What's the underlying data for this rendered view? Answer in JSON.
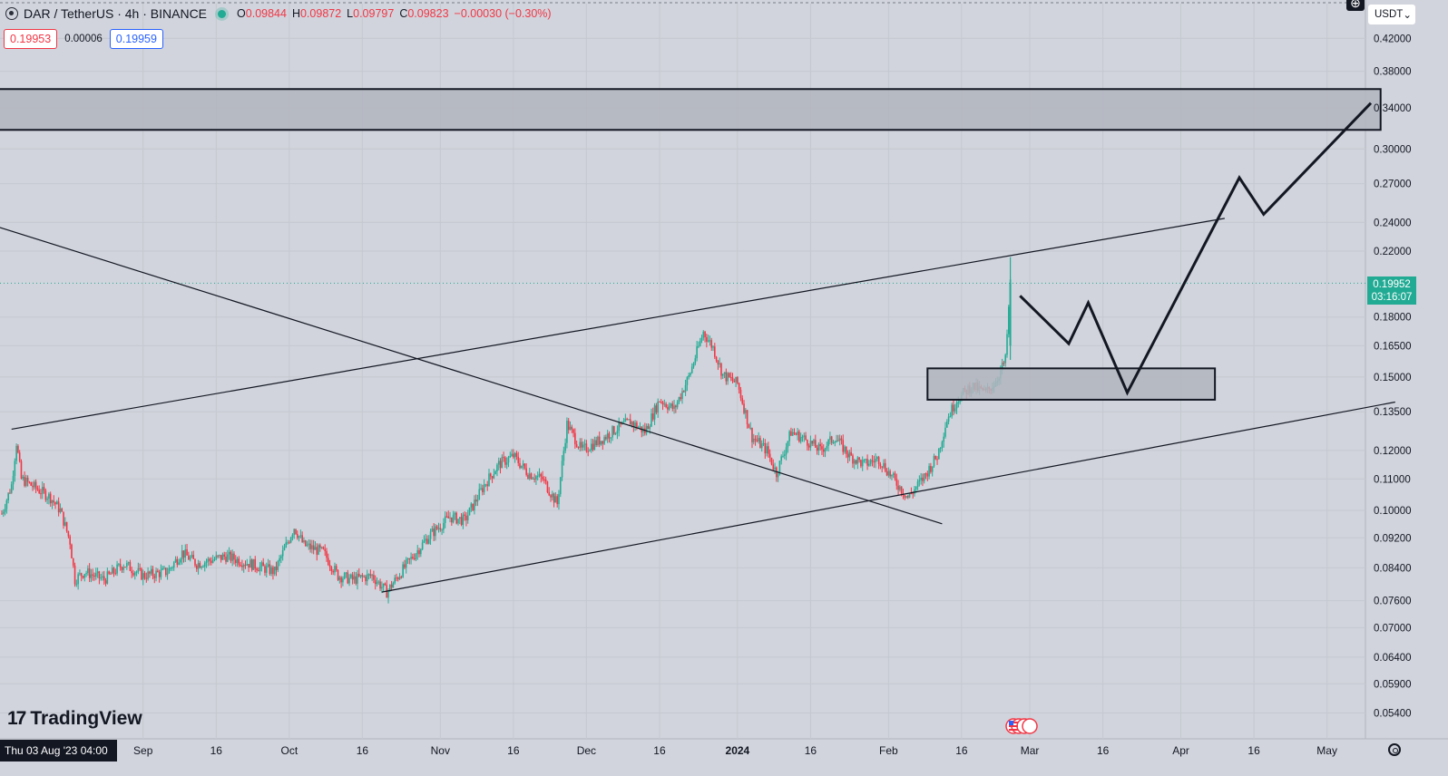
{
  "header": {
    "symbol": "DAR / TetherUS · 4h · BINANCE",
    "open_label": "O",
    "open": "0.09844",
    "high_label": "H",
    "high": "0.09872",
    "low_label": "L",
    "low": "0.09797",
    "close_label": "C",
    "close": "0.09823",
    "change": "−0.00030 (−0.30%)"
  },
  "trade": {
    "sell_price": "0.19953",
    "spread": "0.00006",
    "buy_price": "0.19959"
  },
  "currency": {
    "label": "USDT",
    "caret": "⌄"
  },
  "plus_icon": "⊕",
  "last_price": {
    "price": "0.19952",
    "countdown": "03:16:07"
  },
  "logo": {
    "mark": "17",
    "text": "TradingView"
  },
  "crosshair_date": "Thu 03 Aug '23   04:00",
  "colors": {
    "up": "#22ab94",
    "down": "#f23645",
    "background": "#d1d4dc",
    "lines": "#131722",
    "zone_fill": "#b2b5be"
  },
  "chart_data": {
    "type": "candlestick",
    "symbol": "DAR/USDT",
    "timeframe": "4h",
    "y_scale": "log",
    "ylim": [
      0.05,
      0.43
    ],
    "price_ticks": [
      "0.42000",
      "0.38000",
      "0.34000",
      "0.30000",
      "0.27000",
      "0.24000",
      "0.22000",
      "0.18000",
      "0.16500",
      "0.15000",
      "0.13500",
      "0.12000",
      "0.11000",
      "0.10000",
      "0.09200",
      "0.08400",
      "0.07600",
      "0.07000",
      "0.06400",
      "0.05900",
      "0.05400"
    ],
    "time_ticks": [
      "Sep",
      "16",
      "Oct",
      "16",
      "Nov",
      "16",
      "Dec",
      "16",
      "2024",
      "16",
      "Feb",
      "16",
      "Mar",
      "16",
      "Apr",
      "16",
      "May"
    ],
    "last_price": 0.19952,
    "price_path": [
      [
        "2023-08-03",
        0.099
      ],
      [
        "2023-08-05",
        0.108
      ],
      [
        "2023-08-06",
        0.123
      ],
      [
        "2023-08-07",
        0.11
      ],
      [
        "2023-08-10",
        0.107
      ],
      [
        "2023-08-13",
        0.104
      ],
      [
        "2023-08-15",
        0.1
      ],
      [
        "2023-08-17",
        0.091
      ],
      [
        "2023-08-18",
        0.081
      ],
      [
        "2023-08-20",
        0.083
      ],
      [
        "2023-08-24",
        0.081
      ],
      [
        "2023-08-28",
        0.085
      ],
      [
        "2023-09-01",
        0.082
      ],
      [
        "2023-09-06",
        0.083
      ],
      [
        "2023-09-09",
        0.088
      ],
      [
        "2023-09-12",
        0.085
      ],
      [
        "2023-09-15",
        0.086
      ],
      [
        "2023-09-18",
        0.087
      ],
      [
        "2023-09-23",
        0.085
      ],
      [
        "2023-09-28",
        0.083
      ],
      [
        "2023-10-02",
        0.095
      ],
      [
        "2023-10-04",
        0.09
      ],
      [
        "2023-10-08",
        0.088
      ],
      [
        "2023-10-11",
        0.082
      ],
      [
        "2023-10-14",
        0.081
      ],
      [
        "2023-10-18",
        0.082
      ],
      [
        "2023-10-21",
        0.078
      ],
      [
        "2023-10-24",
        0.083
      ],
      [
        "2023-10-27",
        0.088
      ],
      [
        "2023-10-30",
        0.093
      ],
      [
        "2023-11-03",
        0.098
      ],
      [
        "2023-11-06",
        0.097
      ],
      [
        "2023-11-10",
        0.108
      ],
      [
        "2023-11-13",
        0.115
      ],
      [
        "2023-11-16",
        0.118
      ],
      [
        "2023-11-19",
        0.112
      ],
      [
        "2023-11-22",
        0.11
      ],
      [
        "2023-11-25",
        0.102
      ],
      [
        "2023-11-27",
        0.13
      ],
      [
        "2023-11-30",
        0.12
      ],
      [
        "2023-12-04",
        0.124
      ],
      [
        "2023-12-07",
        0.128
      ],
      [
        "2023-12-10",
        0.131
      ],
      [
        "2023-12-13",
        0.127
      ],
      [
        "2023-12-16",
        0.14
      ],
      [
        "2023-12-19",
        0.136
      ],
      [
        "2023-12-22",
        0.15
      ],
      [
        "2023-12-25",
        0.172
      ],
      [
        "2023-12-27",
        0.164
      ],
      [
        "2023-12-29",
        0.151
      ],
      [
        "2024-01-01",
        0.147
      ],
      [
        "2024-01-04",
        0.125
      ],
      [
        "2024-01-07",
        0.12
      ],
      [
        "2024-01-09",
        0.112
      ],
      [
        "2024-01-12",
        0.127
      ],
      [
        "2024-01-15",
        0.124
      ],
      [
        "2024-01-18",
        0.12
      ],
      [
        "2024-01-21",
        0.125
      ],
      [
        "2024-01-24",
        0.118
      ],
      [
        "2024-01-27",
        0.115
      ],
      [
        "2024-01-30",
        0.117
      ],
      [
        "2024-02-02",
        0.11
      ],
      [
        "2024-02-05",
        0.104
      ],
      [
        "2024-02-08",
        0.11
      ],
      [
        "2024-02-11",
        0.118
      ],
      [
        "2024-02-13",
        0.132
      ],
      [
        "2024-02-15",
        0.14
      ],
      [
        "2024-02-18",
        0.146
      ],
      [
        "2024-02-21",
        0.143
      ],
      [
        "2024-02-23",
        0.148
      ],
      [
        "2024-02-25",
        0.158
      ],
      [
        "2024-02-26",
        0.1995
      ]
    ],
    "trendlines": [
      {
        "from": [
          "2023-07-25",
          0.246
        ],
        "to": [
          "2024-02-12",
          0.096
        ]
      },
      {
        "from": [
          "2023-08-05",
          0.128
        ],
        "to": [
          "2024-04-10",
          0.243
        ]
      },
      {
        "from": [
          "2023-10-20",
          0.078
        ],
        "to": [
          "2024-05-15",
          0.139
        ]
      }
    ],
    "zones": [
      {
        "from": "2023-07-25",
        "to": "2024-05-12",
        "top": 0.36,
        "bottom": 0.318
      },
      {
        "from": "2024-02-09",
        "to": "2024-04-08",
        "top": 0.154,
        "bottom": 0.14
      }
    ],
    "projection": [
      [
        "2024-02-28",
        0.192
      ],
      [
        "2024-03-09",
        0.166
      ],
      [
        "2024-03-13",
        0.188
      ],
      [
        "2024-03-21",
        0.143
      ],
      [
        "2024-04-13",
        0.275
      ],
      [
        "2024-04-18",
        0.246
      ],
      [
        "2024-05-10",
        0.345
      ]
    ]
  }
}
